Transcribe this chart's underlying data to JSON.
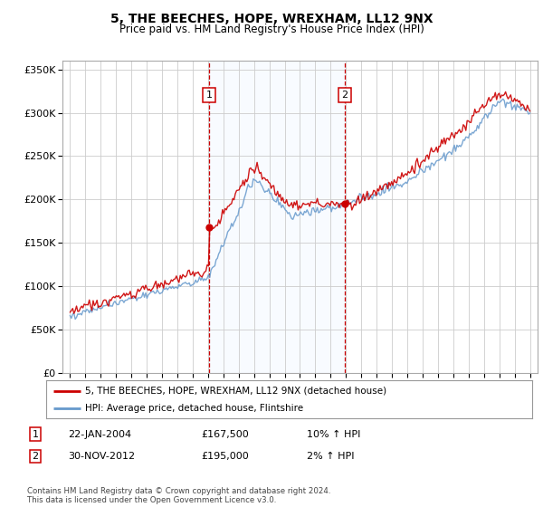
{
  "title": "5, THE BEECHES, HOPE, WREXHAM, LL12 9NX",
  "subtitle": "Price paid vs. HM Land Registry's House Price Index (HPI)",
  "legend_label_red": "5, THE BEECHES, HOPE, WREXHAM, LL12 9NX (detached house)",
  "legend_label_blue": "HPI: Average price, detached house, Flintshire",
  "footnote": "Contains HM Land Registry data © Crown copyright and database right 2024.\nThis data is licensed under the Open Government Licence v3.0.",
  "sale1_label": "1",
  "sale1_date": "22-JAN-2004",
  "sale1_price": "£167,500",
  "sale1_hpi": "10% ↑ HPI",
  "sale1_year": 2004.06,
  "sale1_value": 167500,
  "sale2_label": "2",
  "sale2_date": "30-NOV-2012",
  "sale2_price": "£195,000",
  "sale2_hpi": "2% ↑ HPI",
  "sale2_year": 2012.92,
  "sale2_value": 195000,
  "ylim": [
    0,
    360000
  ],
  "yticks": [
    0,
    50000,
    100000,
    150000,
    200000,
    250000,
    300000,
    350000
  ],
  "red_color": "#cc0000",
  "blue_color": "#6699cc",
  "shade_color": "#ddeeff",
  "grid_color": "#cccccc",
  "spine_color": "#aaaaaa",
  "footnote_color": "#444444",
  "xmin": 1994.5,
  "xmax": 2025.5,
  "year_start": 1995,
  "year_end": 2025
}
